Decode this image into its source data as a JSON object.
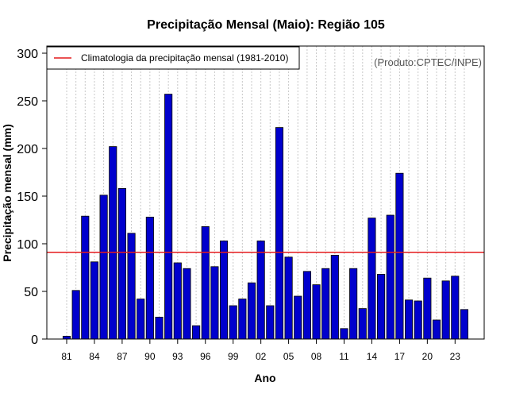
{
  "chart_data": {
    "type": "bar",
    "title": "Precipitação Mensal (Maio): Região 105",
    "xlabel": "Ano",
    "ylabel": "Precipitação mensal (mm)",
    "ylim": [
      0,
      300
    ],
    "yticks": [
      "0",
      "50",
      "100",
      "150",
      "200",
      "250",
      "300"
    ],
    "ytick_values": [
      0,
      50,
      100,
      150,
      200,
      250,
      300
    ],
    "categories": [
      "81",
      "82",
      "83",
      "84",
      "85",
      "86",
      "87",
      "88",
      "89",
      "90",
      "91",
      "92",
      "93",
      "94",
      "95",
      "96",
      "97",
      "98",
      "99",
      "00",
      "01",
      "02",
      "03",
      "04",
      "05",
      "06",
      "07",
      "08",
      "09",
      "10",
      "11",
      "12",
      "13",
      "14",
      "15",
      "16",
      "17",
      "18",
      "19",
      "20",
      "21",
      "22",
      "23",
      "24"
    ],
    "xtick_labels": [
      "81",
      "84",
      "87",
      "90",
      "93",
      "96",
      "99",
      "02",
      "05",
      "08",
      "11",
      "14",
      "17",
      "20",
      "23"
    ],
    "xtick_indices": [
      0,
      3,
      6,
      9,
      12,
      15,
      18,
      21,
      24,
      27,
      30,
      33,
      36,
      39,
      42
    ],
    "values": [
      3,
      51,
      129,
      81,
      151,
      202,
      158,
      111,
      42,
      128,
      23,
      257,
      80,
      74,
      14,
      118,
      76,
      103,
      35,
      42,
      59,
      103,
      35,
      222,
      86,
      45,
      71,
      57,
      74,
      88,
      11,
      74,
      32,
      127,
      68,
      130,
      174,
      41,
      40,
      64,
      20,
      61,
      66,
      31
    ],
    "bar_color": "#0000cd",
    "reference_line": {
      "value": 91,
      "color": "#e41a1c",
      "label": "Climatologia da precipitação mensal (1981-2010)"
    },
    "legend_position": "top-left",
    "grid": "vertical dotted"
  },
  "credit": "(Produto:CPTEC/INPE)"
}
